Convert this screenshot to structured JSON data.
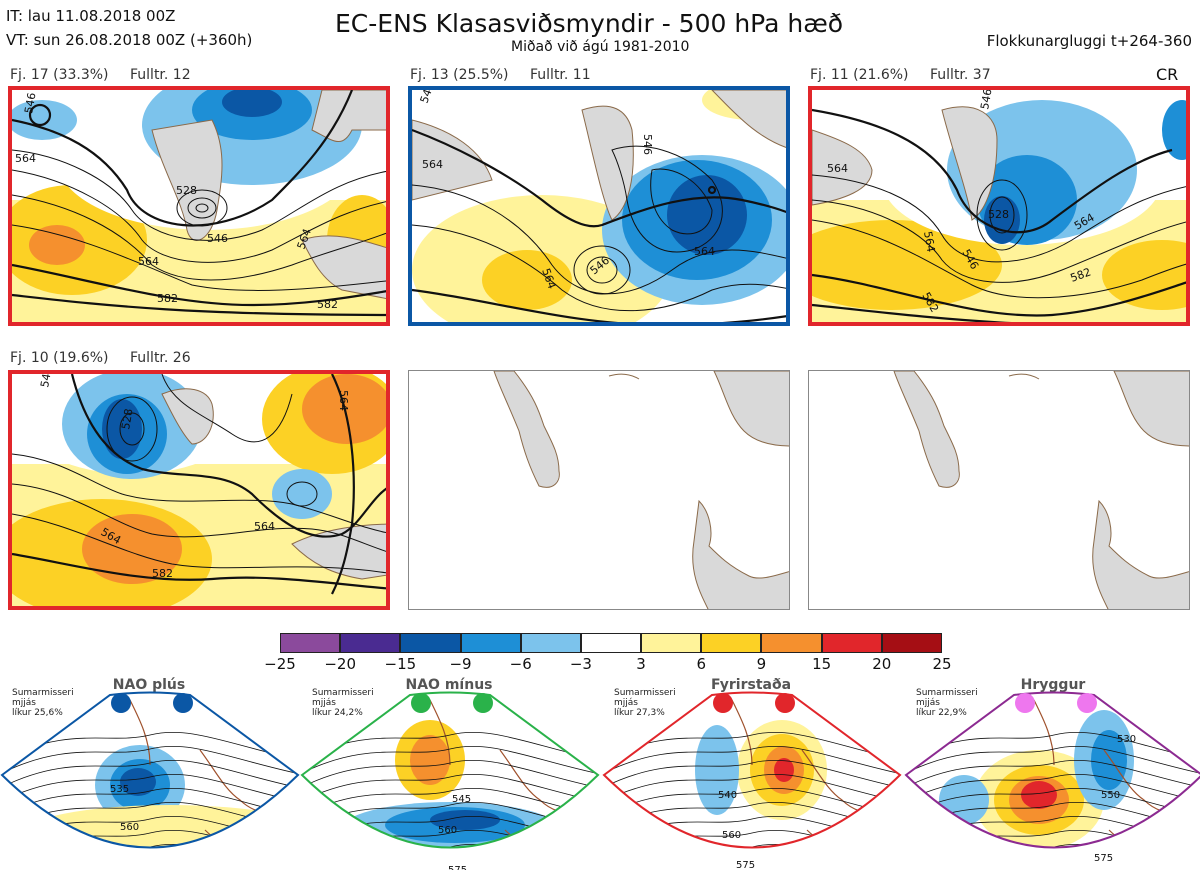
{
  "header": {
    "it_line": "IT: lau 11.08.2018 00Z",
    "vt_line": "VT: sun 26.08.2018 00Z  (+360h)",
    "title": "EC-ENS Klasasviðsmyndir - 500 hPa hæð",
    "subtitle": "Miðað við ágú 1981-2010",
    "window": "Flokkunargluggi t+264-360",
    "regime_code": "CR"
  },
  "panels": [
    {
      "label": "Fj. 17 (33.3%)",
      "fulltr": "Fulltr. 12",
      "border": "red",
      "contours": [
        "546",
        "564",
        "528",
        "546",
        "564",
        "582",
        "582",
        "564"
      ]
    },
    {
      "label": "Fj. 13 (25.5%)",
      "fulltr": "Fulltr. 11",
      "border": "blue",
      "contours": [
        "546",
        "564",
        "546",
        "564",
        "564",
        "582",
        "546"
      ]
    },
    {
      "label": "Fj. 11 (21.6%)",
      "fulltr": "Fulltr. 37",
      "border": "red",
      "contours": [
        "546",
        "564",
        "528",
        "546",
        "564",
        "564",
        "582",
        "582"
      ]
    },
    {
      "label": "Fj. 10 (19.6%)",
      "fulltr": "Fulltr. 26",
      "border": "red",
      "contours": [
        "546",
        "528",
        "564",
        "564",
        "582",
        "564"
      ]
    }
  ],
  "colorbar": {
    "ticks": [
      "−25",
      "−20",
      "−15",
      "−9",
      "−6",
      "−3",
      "3",
      "6",
      "9",
      "15",
      "20",
      "25"
    ],
    "colors": [
      "#8b4a9c",
      "#4a2b91",
      "#0b57a5",
      "#1e8fd6",
      "#7cc3ec",
      "#ffffff",
      "#fff39a",
      "#fcd125",
      "#f5902e",
      "#e1262b",
      "#a50e14"
    ]
  },
  "regimes": [
    {
      "title": "NAO plús",
      "note": "Sumarmisseri\nmjjás\nlíkur 25,6%",
      "dot_color": "#0b57a5",
      "frame_color": "#0b57a5",
      "contours": [
        "535",
        "560"
      ]
    },
    {
      "title": "NAO mínus",
      "note": "Sumarmisseri\nmjjás\nlíkur 24,2%",
      "dot_color": "#2ab24a",
      "frame_color": "#2ab24a",
      "contours": [
        "545",
        "560",
        "575"
      ]
    },
    {
      "title": "Fyrirstaða",
      "note": "Sumarmisseri\nmjjás\nlíkur 27,3%",
      "dot_color": "#e1262b",
      "frame_color": "#e1262b",
      "contours": [
        "540",
        "560",
        "575"
      ]
    },
    {
      "title": "Hryggur",
      "note": "Sumarmisseri\nmjjás\nlíkur 22,9%",
      "dot_color": "#ee77ee",
      "frame_color": "#8c2a91",
      "contours": [
        "530",
        "550",
        "575"
      ]
    }
  ]
}
